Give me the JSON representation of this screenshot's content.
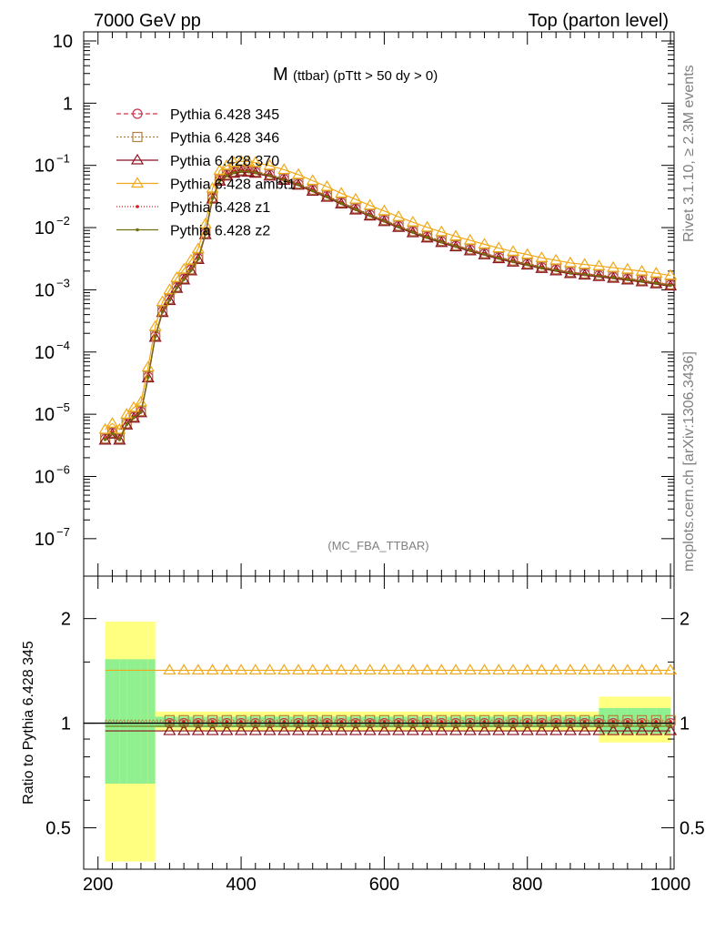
{
  "header": {
    "left": "7000 GeV pp",
    "right": "Top (parton level)"
  },
  "side_labels": {
    "rivet": "Rivet 3.1.10, ≥ 2.3M events",
    "mcplots": "mcplots.cern.ch [arXiv:1306.3436]"
  },
  "chart_data": [
    {
      "type": "line",
      "title_main": "M",
      "title_sub": "(ttbar) (pTtt > 50 dy > 0)",
      "watermark": "(MC_FBA_TTBAR)",
      "x_scale": "linear",
      "y_scale": "log",
      "xlim": [
        180,
        1005
      ],
      "ylim": [
        2.5e-08,
        14
      ],
      "y_ticks": [
        {
          "v": 1e-07,
          "label": "10",
          "exp": "−7"
        },
        {
          "v": 1e-06,
          "label": "10",
          "exp": "−6"
        },
        {
          "v": 1e-05,
          "label": "10",
          "exp": "−5"
        },
        {
          "v": 0.0001,
          "label": "10",
          "exp": "−4"
        },
        {
          "v": 0.001,
          "label": "10",
          "exp": "−3"
        },
        {
          "v": 0.01,
          "label": "10",
          "exp": "−2"
        },
        {
          "v": 0.1,
          "label": "10",
          "exp": "−1"
        },
        {
          "v": 1,
          "label": "1",
          "exp": ""
        },
        {
          "v": 10,
          "label": "10",
          "exp": ""
        }
      ],
      "legend_position": "top-left",
      "series": [
        {
          "name": "Pythia 6.428 345",
          "color": "#c8334f",
          "dash": "5,3",
          "marker": "circle",
          "scale": 1.0
        },
        {
          "name": "Pythia 6.428 346",
          "color": "#b08040",
          "dash": "2,2",
          "marker": "square",
          "scale": 1.02
        },
        {
          "name": "Pythia 6.428 370",
          "color": "#8b1020",
          "dash": "",
          "marker": "triangle",
          "scale": 0.95
        },
        {
          "name": "Pythia 6.428 ambt1",
          "color": "#f0a818",
          "dash": "",
          "marker": "triangle",
          "scale": 1.42
        },
        {
          "name": "Pythia 6.428 z1",
          "color": "#d42020",
          "dash": "1,2",
          "marker": "dot",
          "scale": 1.01
        },
        {
          "name": "Pythia 6.428 z2",
          "color": "#707010",
          "dash": "",
          "marker": "dot",
          "scale": 0.98
        }
      ],
      "reference_curve": {
        "x": [
          210,
          220,
          230,
          240,
          250,
          260,
          270,
          280,
          290,
          300,
          310,
          320,
          330,
          340,
          350,
          360,
          370,
          380,
          390,
          400,
          410,
          420,
          440,
          460,
          480,
          500,
          520,
          540,
          560,
          580,
          600,
          620,
          640,
          660,
          680,
          700,
          720,
          740,
          760,
          780,
          800,
          820,
          840,
          860,
          880,
          900,
          920,
          940,
          960,
          980,
          1000
        ],
        "y": [
          4e-06,
          5e-06,
          4e-06,
          7e-06,
          9e-06,
          1.1e-05,
          4e-05,
          0.00018,
          0.00045,
          0.0007,
          0.0011,
          0.0015,
          0.0021,
          0.0032,
          0.008,
          0.03,
          0.058,
          0.07,
          0.078,
          0.082,
          0.081,
          0.078,
          0.07,
          0.06,
          0.05,
          0.04,
          0.032,
          0.025,
          0.02,
          0.016,
          0.013,
          0.0105,
          0.0086,
          0.0071,
          0.006,
          0.0051,
          0.0044,
          0.0038,
          0.0033,
          0.0029,
          0.0026,
          0.0023,
          0.0021,
          0.0019,
          0.0018,
          0.0017,
          0.0016,
          0.0015,
          0.0014,
          0.0013,
          0.0012
        ]
      }
    },
    {
      "type": "line",
      "ylabel": "Ratio to Pythia 6.428 345",
      "x_scale": "linear",
      "y_scale": "log",
      "xlim": [
        180,
        1005
      ],
      "ylim": [
        0.38,
        2.65
      ],
      "x_ticks": [
        200,
        400,
        600,
        800,
        1000
      ],
      "y_ticks": [
        0.5,
        1,
        2
      ],
      "reference_line": 1,
      "ratios": {
        "Pythia 6.428 345": 1.0,
        "Pythia 6.428 346": 1.02,
        "Pythia 6.428 370": 0.95,
        "Pythia 6.428 ambt1": 1.42,
        "Pythia 6.428 z1": 1.01,
        "Pythia 6.428 z2": 0.98
      }
    }
  ]
}
